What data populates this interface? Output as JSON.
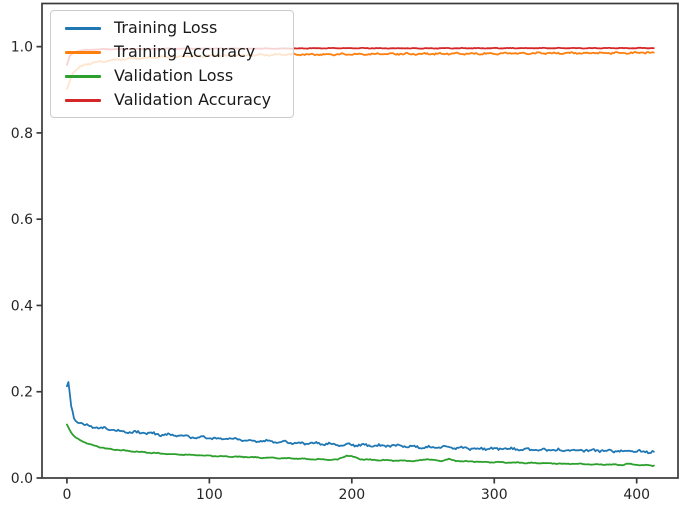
{
  "figure": {
    "background": "#ffffff",
    "spine_color": "#3a3a3a",
    "tick_text_color": "#262626"
  },
  "chart_data": {
    "type": "line",
    "title": "",
    "xlabel": "",
    "ylabel": "",
    "xlim": [
      -17.5,
      429
    ],
    "ylim": [
      0,
      1.1
    ],
    "xticks": [
      0,
      100,
      200,
      300,
      400
    ],
    "xticklabels": [
      "0",
      "100",
      "200",
      "300",
      "400"
    ],
    "yticks": [
      0.0,
      0.2,
      0.4,
      0.6,
      0.8,
      1.0
    ],
    "yticklabels": [
      "0.0",
      "0.2",
      "0.4",
      "0.6",
      "0.8",
      "1.0"
    ],
    "grid": false,
    "legend_position": "upper left",
    "x_end": 412,
    "series": [
      {
        "name": "Training Loss",
        "color": "#1f77b4",
        "noise": 0.0035,
        "keypoints": [
          [
            0,
            0.215
          ],
          [
            1,
            0.22
          ],
          [
            3,
            0.165
          ],
          [
            5,
            0.138
          ],
          [
            8,
            0.13
          ],
          [
            12,
            0.124
          ],
          [
            18,
            0.119
          ],
          [
            25,
            0.115
          ],
          [
            35,
            0.11
          ],
          [
            45,
            0.107
          ],
          [
            55,
            0.104
          ],
          [
            70,
            0.1
          ],
          [
            85,
            0.096
          ],
          [
            100,
            0.093
          ],
          [
            115,
            0.09
          ],
          [
            130,
            0.087
          ],
          [
            145,
            0.0845
          ],
          [
            160,
            0.082
          ],
          [
            175,
            0.08
          ],
          [
            190,
            0.078
          ],
          [
            205,
            0.0765
          ],
          [
            220,
            0.075
          ],
          [
            235,
            0.0735
          ],
          [
            250,
            0.072
          ],
          [
            265,
            0.0705
          ],
          [
            280,
            0.069
          ],
          [
            295,
            0.068
          ],
          [
            310,
            0.0672
          ],
          [
            325,
            0.066
          ],
          [
            340,
            0.065
          ],
          [
            355,
            0.0643
          ],
          [
            370,
            0.0635
          ],
          [
            385,
            0.0625
          ],
          [
            400,
            0.0615
          ],
          [
            412,
            0.061
          ]
        ]
      },
      {
        "name": "Training Accuracy",
        "color": "#ff7f0e",
        "noise": 0.0022,
        "keypoints": [
          [
            0,
            0.9
          ],
          [
            2,
            0.922
          ],
          [
            4,
            0.938
          ],
          [
            7,
            0.948
          ],
          [
            10,
            0.9545
          ],
          [
            15,
            0.96
          ],
          [
            20,
            0.9635
          ],
          [
            28,
            0.9675
          ],
          [
            38,
            0.9705
          ],
          [
            50,
            0.973
          ],
          [
            65,
            0.9755
          ],
          [
            80,
            0.977
          ],
          [
            100,
            0.9785
          ],
          [
            125,
            0.98
          ],
          [
            150,
            0.9815
          ],
          [
            175,
            0.982
          ],
          [
            200,
            0.9825
          ],
          [
            230,
            0.983
          ],
          [
            260,
            0.9835
          ],
          [
            290,
            0.984
          ],
          [
            320,
            0.9845
          ],
          [
            350,
            0.985
          ],
          [
            380,
            0.9855
          ],
          [
            412,
            0.986
          ]
        ]
      },
      {
        "name": "Validation Loss",
        "color": "#2ca02c",
        "noise": 0.0012,
        "keypoints": [
          [
            0,
            0.125
          ],
          [
            3,
            0.105
          ],
          [
            6,
            0.094
          ],
          [
            10,
            0.086
          ],
          [
            15,
            0.079
          ],
          [
            20,
            0.074
          ],
          [
            28,
            0.068
          ],
          [
            35,
            0.0655
          ],
          [
            45,
            0.062
          ],
          [
            55,
            0.0595
          ],
          [
            70,
            0.056
          ],
          [
            85,
            0.0535
          ],
          [
            100,
            0.0515
          ],
          [
            115,
            0.0495
          ],
          [
            130,
            0.048
          ],
          [
            145,
            0.0465
          ],
          [
            160,
            0.045
          ],
          [
            175,
            0.0435
          ],
          [
            190,
            0.0425
          ],
          [
            196,
            0.052
          ],
          [
            200,
            0.05
          ],
          [
            206,
            0.0435
          ],
          [
            215,
            0.042
          ],
          [
            230,
            0.0405
          ],
          [
            245,
            0.0395
          ],
          [
            253,
            0.044
          ],
          [
            258,
            0.0415
          ],
          [
            263,
            0.04
          ],
          [
            268,
            0.0435
          ],
          [
            273,
            0.0395
          ],
          [
            285,
            0.038
          ],
          [
            300,
            0.0365
          ],
          [
            315,
            0.0355
          ],
          [
            330,
            0.0345
          ],
          [
            345,
            0.0335
          ],
          [
            360,
            0.0325
          ],
          [
            375,
            0.0315
          ],
          [
            390,
            0.0305
          ],
          [
            395,
            0.033
          ],
          [
            400,
            0.0305
          ],
          [
            412,
            0.0285
          ]
        ]
      },
      {
        "name": "Validation Accuracy",
        "color": "#d62728",
        "noise": 0.0008,
        "keypoints": [
          [
            0,
            0.958
          ],
          [
            2,
            0.978
          ],
          [
            5,
            0.9875
          ],
          [
            10,
            0.991
          ],
          [
            15,
            0.9925
          ],
          [
            25,
            0.994
          ],
          [
            40,
            0.9945
          ],
          [
            60,
            0.995
          ],
          [
            100,
            0.9955
          ],
          [
            150,
            0.9955
          ],
          [
            185,
            0.9965
          ],
          [
            210,
            0.9963
          ],
          [
            250,
            0.996
          ],
          [
            300,
            0.9965
          ],
          [
            350,
            0.9965
          ],
          [
            412,
            0.9965
          ]
        ]
      }
    ]
  }
}
